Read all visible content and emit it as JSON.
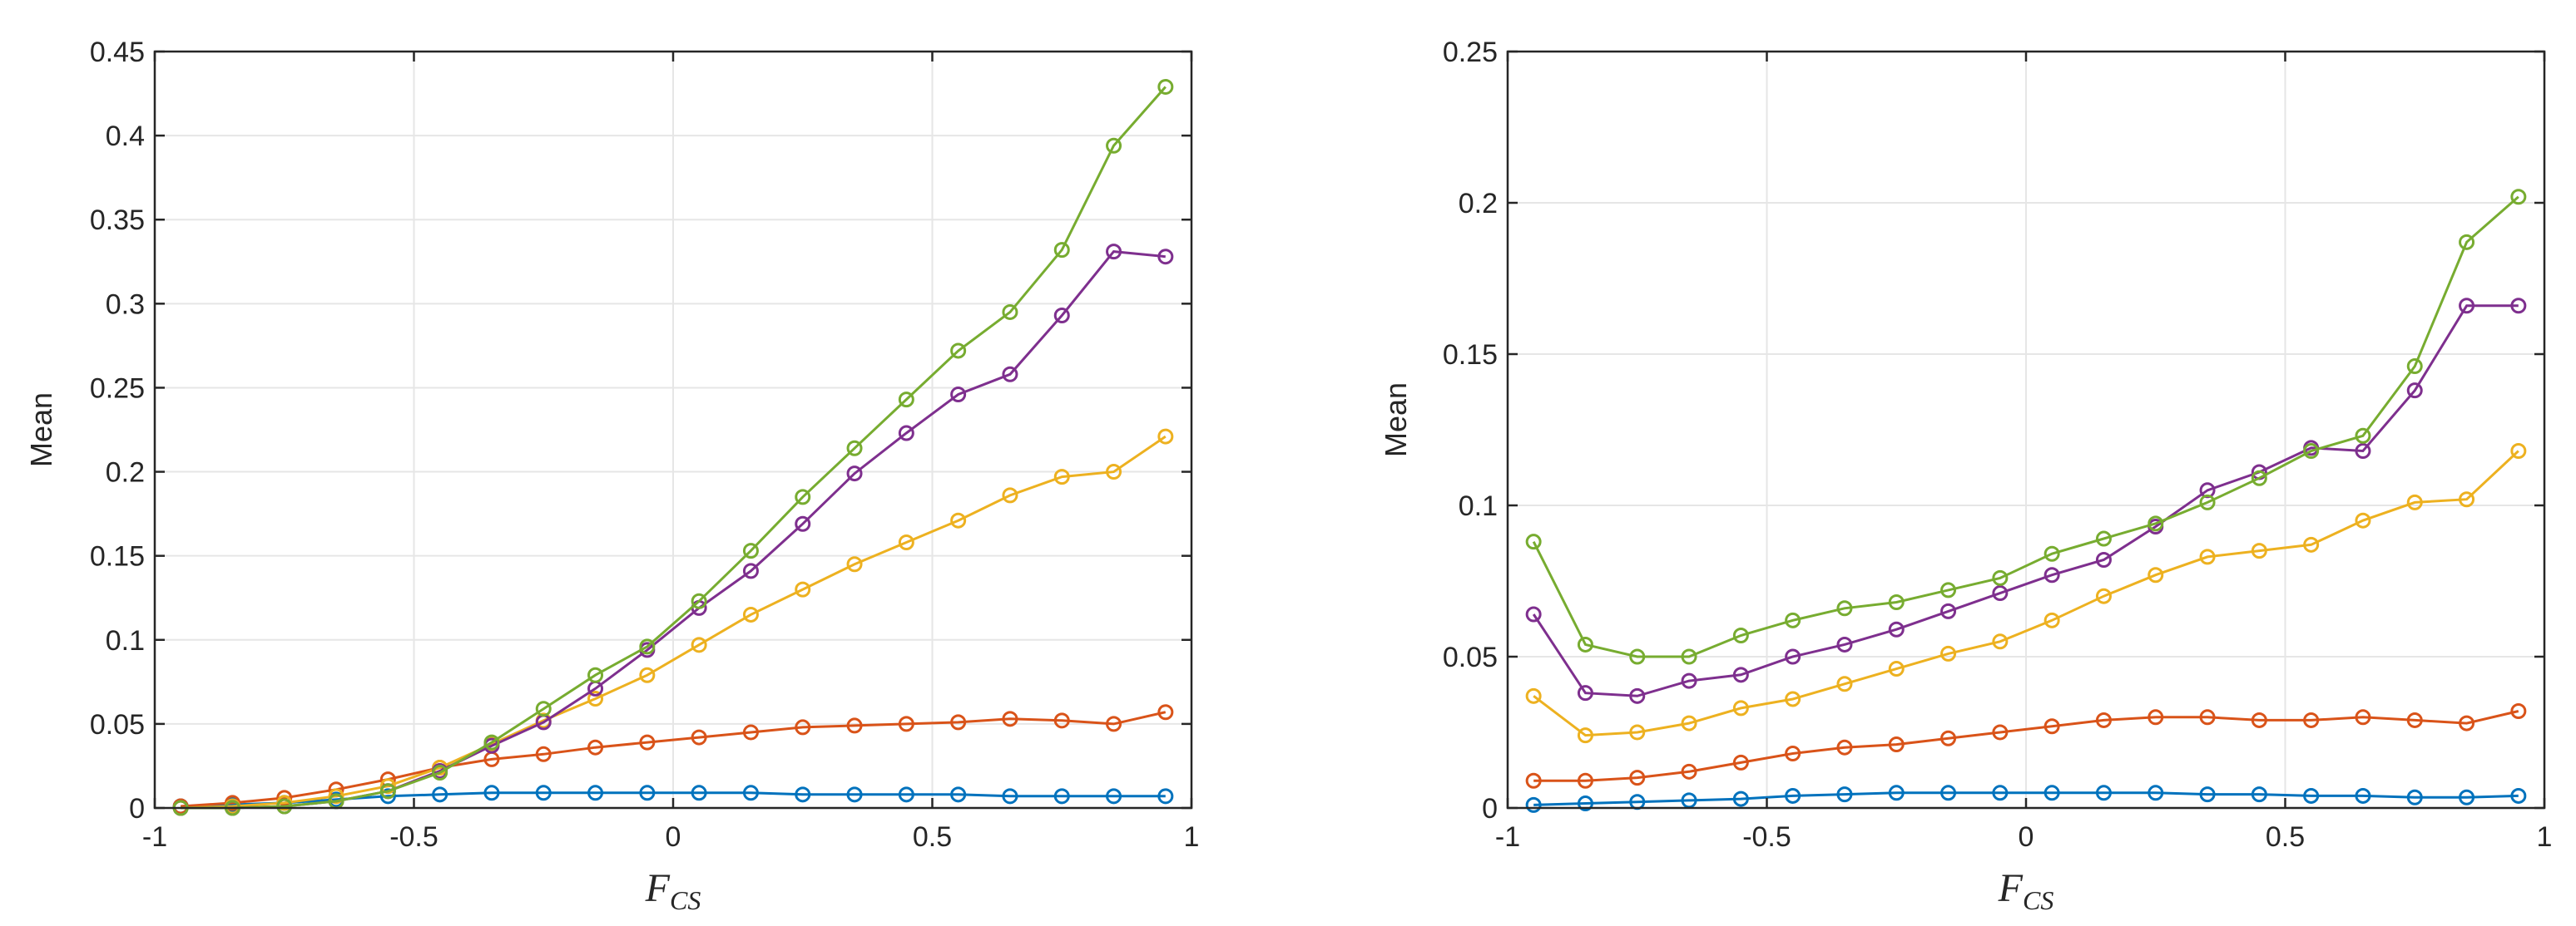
{
  "chart_data": [
    {
      "type": "line",
      "xlabel": "F",
      "xlabel_sub": "CS",
      "ylabel": "Mean",
      "xlim": [
        -1,
        1
      ],
      "ylim": [
        0,
        0.45
      ],
      "xticks": [
        -1,
        -0.5,
        0,
        0.5,
        1
      ],
      "xtick_labels": [
        "-1",
        "-0.5",
        "0",
        "0.5",
        "1"
      ],
      "yticks": [
        0,
        0.05,
        0.1,
        0.15,
        0.2,
        0.25,
        0.3,
        0.35,
        0.4,
        0.45
      ],
      "ytick_labels": [
        "0",
        "0.05",
        "0.1",
        "0.15",
        "0.2",
        "0.25",
        "0.3",
        "0.35",
        "0.4",
        "0.45"
      ],
      "grid": true,
      "x": [
        -0.95,
        -0.85,
        -0.75,
        -0.65,
        -0.55,
        -0.45,
        -0.35,
        -0.25,
        -0.15,
        -0.05,
        0.05,
        0.15,
        0.25,
        0.35,
        0.45,
        0.55,
        0.65,
        0.75,
        0.85,
        0.95
      ],
      "series": [
        {
          "name": "blue",
          "color": "#0072BD",
          "values": [
            0.001,
            0.002,
            0.003,
            0.005,
            0.007,
            0.008,
            0.009,
            0.009,
            0.009,
            0.009,
            0.009,
            0.009,
            0.008,
            0.008,
            0.008,
            0.008,
            0.007,
            0.007,
            0.007,
            0.007
          ]
        },
        {
          "name": "orange",
          "color": "#D95319",
          "values": [
            0.001,
            0.003,
            0.006,
            0.011,
            0.017,
            0.024,
            0.029,
            0.032,
            0.036,
            0.039,
            0.042,
            0.045,
            0.048,
            0.049,
            0.05,
            0.051,
            0.053,
            0.052,
            0.05,
            0.057
          ]
        },
        {
          "name": "yellow",
          "color": "#EDB120",
          "values": [
            0.0,
            0.001,
            0.003,
            0.007,
            0.013,
            0.024,
            0.038,
            0.052,
            0.065,
            0.079,
            0.097,
            0.115,
            0.13,
            0.145,
            0.158,
            0.171,
            0.186,
            0.197,
            0.2,
            0.221
          ]
        },
        {
          "name": "purple",
          "color": "#7E2F8E",
          "values": [
            0.0,
            0.0,
            0.001,
            0.004,
            0.01,
            0.022,
            0.037,
            0.051,
            0.071,
            0.094,
            0.119,
            0.141,
            0.169,
            0.199,
            0.223,
            0.246,
            0.258,
            0.293,
            0.331,
            0.328
          ]
        },
        {
          "name": "green",
          "color": "#77AC30",
          "values": [
            0.0,
            0.0,
            0.001,
            0.004,
            0.01,
            0.021,
            0.039,
            0.059,
            0.079,
            0.096,
            0.123,
            0.153,
            0.185,
            0.214,
            0.243,
            0.272,
            0.295,
            0.332,
            0.394,
            0.429
          ]
        }
      ]
    },
    {
      "type": "line",
      "xlabel": "F",
      "xlabel_sub": "CS",
      "ylabel": "Mean",
      "xlim": [
        -1,
        1
      ],
      "ylim": [
        0,
        0.25
      ],
      "xticks": [
        -1,
        -0.5,
        0,
        0.5,
        1
      ],
      "xtick_labels": [
        "-1",
        "-0.5",
        "0",
        "0.5",
        "1"
      ],
      "yticks": [
        0,
        0.05,
        0.1,
        0.15,
        0.2,
        0.25
      ],
      "ytick_labels": [
        "0",
        "0.05",
        "0.1",
        "0.15",
        "0.2",
        "0.25"
      ],
      "grid": true,
      "x": [
        -0.95,
        -0.85,
        -0.75,
        -0.65,
        -0.55,
        -0.45,
        -0.35,
        -0.25,
        -0.15,
        -0.05,
        0.05,
        0.15,
        0.25,
        0.35,
        0.45,
        0.55,
        0.65,
        0.75,
        0.85,
        0.95
      ],
      "series": [
        {
          "name": "blue",
          "color": "#0072BD",
          "values": [
            0.001,
            0.0015,
            0.002,
            0.0025,
            0.003,
            0.004,
            0.0045,
            0.005,
            0.005,
            0.005,
            0.005,
            0.005,
            0.005,
            0.0045,
            0.0045,
            0.004,
            0.004,
            0.0035,
            0.0035,
            0.004
          ]
        },
        {
          "name": "orange",
          "color": "#D95319",
          "values": [
            0.009,
            0.009,
            0.01,
            0.012,
            0.015,
            0.018,
            0.02,
            0.021,
            0.023,
            0.025,
            0.027,
            0.029,
            0.03,
            0.03,
            0.029,
            0.029,
            0.03,
            0.029,
            0.028,
            0.032
          ]
        },
        {
          "name": "yellow",
          "color": "#EDB120",
          "values": [
            0.037,
            0.024,
            0.025,
            0.028,
            0.033,
            0.036,
            0.041,
            0.046,
            0.051,
            0.055,
            0.062,
            0.07,
            0.077,
            0.083,
            0.085,
            0.087,
            0.095,
            0.101,
            0.102,
            0.118
          ]
        },
        {
          "name": "purple",
          "color": "#7E2F8E",
          "values": [
            0.064,
            0.038,
            0.037,
            0.042,
            0.044,
            0.05,
            0.054,
            0.059,
            0.065,
            0.071,
            0.077,
            0.082,
            0.093,
            0.105,
            0.111,
            0.119,
            0.118,
            0.138,
            0.166,
            0.166
          ]
        },
        {
          "name": "green",
          "color": "#77AC30",
          "values": [
            0.088,
            0.054,
            0.05,
            0.05,
            0.057,
            0.062,
            0.066,
            0.068,
            0.072,
            0.076,
            0.084,
            0.089,
            0.094,
            0.101,
            0.109,
            0.118,
            0.123,
            0.146,
            0.187,
            0.202
          ]
        }
      ]
    }
  ]
}
